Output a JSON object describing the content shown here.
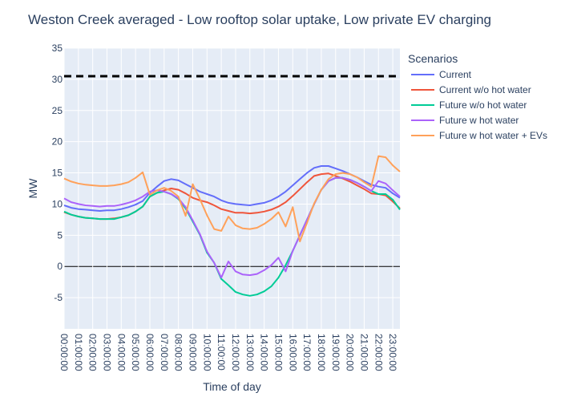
{
  "chart_data": {
    "type": "line",
    "title": "Weston Creek averaged - Low rooftop solar uptake, Low private EV charging",
    "xlabel": "Time of day",
    "ylabel": "MW",
    "ylim": [
      -10,
      35
    ],
    "yticks": [
      -5,
      0,
      5,
      10,
      15,
      20,
      25,
      30,
      35
    ],
    "grid": true,
    "legend_title": "Scenarios",
    "legend_position": "right",
    "x_tick_labels": [
      "00:00:00",
      "01:00:00",
      "02:00:00",
      "03:00:00",
      "04:00:00",
      "05:00:00",
      "06:00:00",
      "07:00:00",
      "08:00:00",
      "09:00:00",
      "10:00:00",
      "11:00:00",
      "12:00:00",
      "13:00:00",
      "14:00:00",
      "15:00:00",
      "16:00:00",
      "17:00:00",
      "18:00:00",
      "19:00:00",
      "20:00:00",
      "21:00:00",
      "22:00:00",
      "23:00:00"
    ],
    "x_hours": [
      0,
      0.5,
      1,
      1.5,
      2,
      2.5,
      3,
      3.5,
      4,
      4.5,
      5,
      5.5,
      6,
      6.5,
      7,
      7.5,
      8,
      8.5,
      9,
      9.5,
      10,
      10.5,
      11,
      11.5,
      12,
      12.5,
      13,
      13.5,
      14,
      14.5,
      15,
      15.5,
      16,
      16.5,
      17,
      17.5,
      18,
      18.5,
      19,
      19.5,
      20,
      20.5,
      21,
      21.5,
      22,
      22.5,
      23,
      23.5
    ],
    "reference_line": {
      "y": 30.5,
      "style": "dashed",
      "color": "#000000"
    },
    "series": [
      {
        "name": "Current",
        "color": "#636efa",
        "values": [
          9.8,
          9.4,
          9.2,
          9.1,
          9.0,
          8.9,
          9.0,
          9.0,
          9.2,
          9.5,
          9.9,
          10.5,
          11.8,
          12.8,
          13.7,
          14.0,
          13.8,
          13.2,
          12.6,
          12.0,
          11.6,
          11.2,
          10.6,
          10.2,
          10.0,
          9.9,
          9.8,
          10.0,
          10.2,
          10.6,
          11.2,
          12.0,
          13.0,
          14.0,
          15.0,
          15.8,
          16.1,
          16.1,
          15.7,
          15.3,
          14.8,
          14.3,
          13.7,
          13.1,
          12.8,
          12.6,
          11.7,
          11.0
        ]
      },
      {
        "name": "Current w/o hot water",
        "color": "#ef553b",
        "values": [
          8.7,
          8.3,
          8.0,
          7.8,
          7.7,
          7.6,
          7.6,
          7.7,
          7.9,
          8.2,
          8.8,
          9.6,
          11.2,
          11.8,
          12.2,
          12.5,
          12.3,
          11.7,
          11.0,
          10.6,
          10.3,
          9.8,
          9.2,
          8.9,
          8.6,
          8.6,
          8.5,
          8.6,
          8.8,
          9.1,
          9.6,
          10.3,
          11.3,
          12.4,
          13.5,
          14.5,
          14.8,
          14.9,
          14.5,
          14.1,
          13.6,
          13.0,
          12.4,
          11.7,
          11.6,
          11.4,
          10.4,
          9.3
        ]
      },
      {
        "name": "Future w/o hot water",
        "color": "#00cc96",
        "values": [
          8.8,
          8.3,
          8.0,
          7.8,
          7.7,
          7.6,
          7.6,
          7.6,
          7.9,
          8.2,
          8.8,
          9.6,
          11.2,
          11.8,
          12.0,
          11.6,
          10.8,
          9.3,
          7.2,
          5.1,
          2.2,
          0.6,
          -2.0,
          -3.0,
          -4.1,
          -4.5,
          -4.7,
          -4.5,
          -4.0,
          -3.2,
          -1.8,
          0.2,
          2.5,
          5.0,
          7.5,
          10.0,
          12.3,
          13.7,
          14.2,
          14.2,
          13.9,
          13.4,
          12.8,
          12.1,
          11.6,
          11.6,
          10.7,
          9.1
        ]
      },
      {
        "name": "Future w hot water",
        "color": "#ab63fa",
        "values": [
          10.9,
          10.3,
          10.0,
          9.8,
          9.7,
          9.6,
          9.7,
          9.7,
          9.9,
          10.2,
          10.6,
          11.2,
          12.0,
          12.2,
          12.0,
          11.6,
          10.9,
          9.5,
          7.4,
          5.2,
          2.4,
          0.6,
          -1.8,
          0.8,
          -0.8,
          -1.3,
          -1.4,
          -1.2,
          -0.6,
          0.2,
          1.4,
          -0.8,
          2.5,
          5.0,
          7.5,
          10.0,
          12.3,
          13.7,
          14.2,
          14.2,
          13.9,
          13.4,
          12.8,
          12.1,
          13.7,
          13.3,
          12.2,
          11.2
        ]
      },
      {
        "name": "Future w hot water + EVs",
        "color": "#ffa15a",
        "values": [
          14.1,
          13.6,
          13.3,
          13.1,
          13.0,
          12.9,
          12.9,
          13.0,
          13.2,
          13.5,
          14.2,
          15.1,
          11.5,
          12.2,
          12.6,
          12.1,
          11.2,
          8.1,
          13.2,
          10.8,
          8.2,
          6.0,
          5.7,
          8.0,
          6.6,
          6.1,
          6.0,
          6.2,
          6.8,
          7.6,
          8.7,
          6.4,
          9.5,
          4.0,
          7.0,
          10.1,
          12.3,
          14.0,
          14.8,
          15.0,
          14.8,
          14.3,
          13.5,
          12.8,
          17.7,
          17.5,
          16.2,
          15.2
        ]
      }
    ]
  }
}
